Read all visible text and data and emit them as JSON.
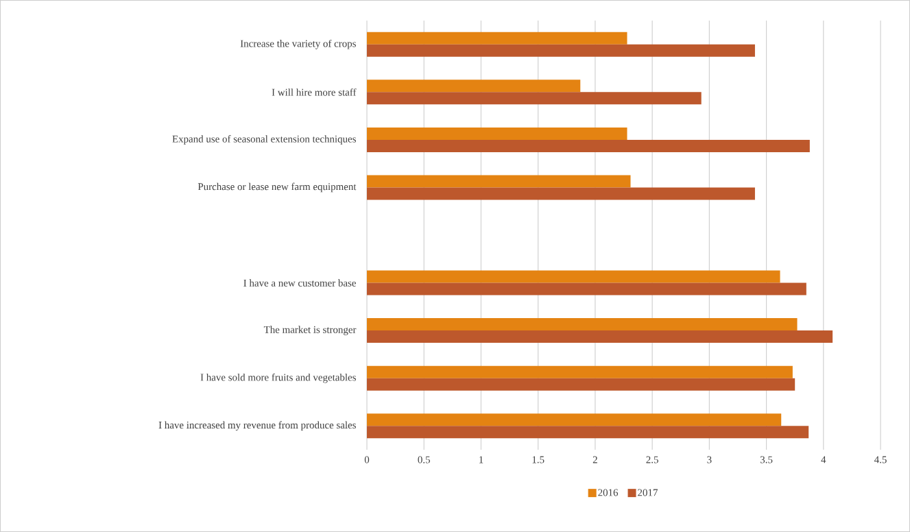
{
  "chart_data": {
    "type": "bar",
    "orientation": "horizontal",
    "categories": [
      "Increase the variety of crops",
      "I will hire more staff",
      "Expand use of seasonal extension techniques",
      "Purchase or lease new farm equipment",
      null,
      "I have a new customer base",
      "The market is stronger",
      "I have sold more fruits and vegetables",
      "I have increased my revenue from produce sales"
    ],
    "series": [
      {
        "name": "2016",
        "color": "#e48312",
        "values": [
          2.28,
          1.87,
          2.28,
          2.31,
          null,
          3.62,
          3.77,
          3.73,
          3.63
        ]
      },
      {
        "name": "2017",
        "color": "#bd582c",
        "values": [
          3.4,
          2.93,
          3.88,
          3.4,
          null,
          3.85,
          4.08,
          3.75,
          3.87
        ]
      }
    ],
    "xlim": [
      0,
      4.5
    ],
    "xticks": [
      0,
      0.5,
      1,
      1.5,
      2,
      2.5,
      3,
      3.5,
      4,
      4.5
    ],
    "grid": "x",
    "legend": "bottom"
  }
}
